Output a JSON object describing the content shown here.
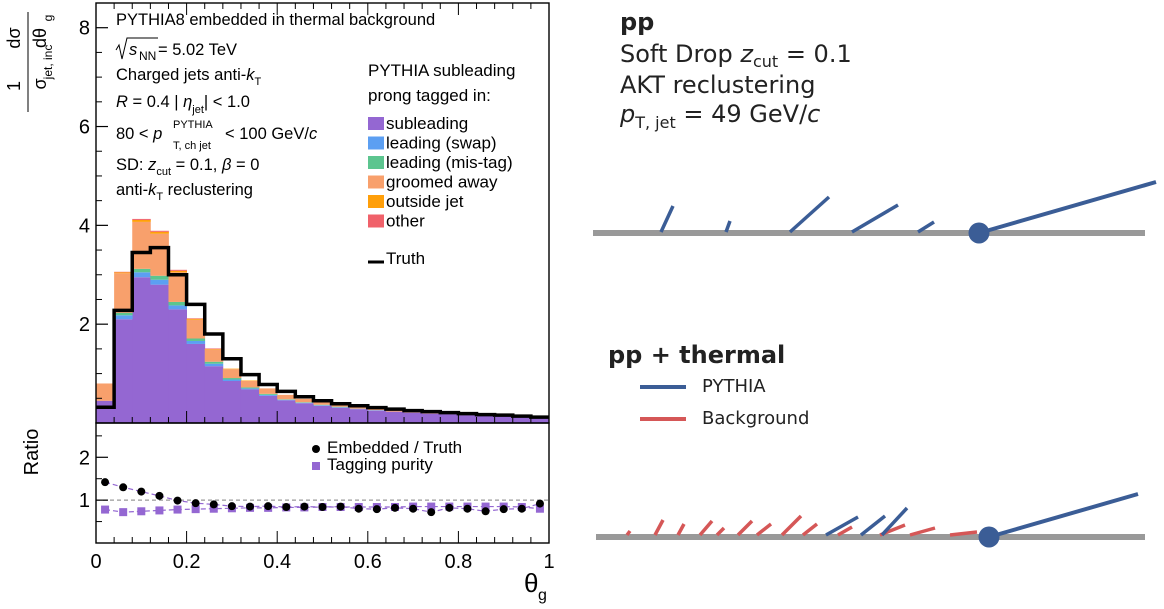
{
  "figure": {
    "colors": {
      "subleading": "#9467d2",
      "leading_swap": "#5c9ff2",
      "leading_mistag": "#5cc58f",
      "groomed_away": "#f8a06c",
      "outside_jet": "#ff9f0a",
      "other": "#f0616a",
      "truth": "#000000",
      "pythia_line": "#3b5d96",
      "background_line": "#d55757",
      "axis_line": "#999999"
    },
    "y_axis_label_frac": "1",
    "y_axis_label_sigma": "σ",
    "y_axis_label_sigma_sub": "jet, inc",
    "y_axis_label_num": "dσ",
    "y_axis_label_den": "dθ",
    "y_axis_label_den_sub": "g",
    "ratio_label": "Ratio",
    "x_axis_label": "θ",
    "x_axis_label_sub": "g",
    "annotations": {
      "line1": "PYTHIA8 embedded in thermal background",
      "line2_sqrt": "s",
      "line2_sub": "NN",
      "line2_rest": " = 5.02 TeV",
      "line3_a": "Charged jets   anti-",
      "line3_k": "k",
      "line3_sub": "T",
      "line4_R": "R",
      "line4_a": " = 0.4   | ",
      "line4_eta": "η",
      "line4_sub": "jet",
      "line4_b": "| < 1.0",
      "line5_a": "80 < ",
      "line5_p": "p",
      "line5_sup": "PYTHIA",
      "line5_sub": "T, ch jet",
      "line5_b": " < 100 GeV/",
      "line5_c": "c",
      "line6_a": "SD: ",
      "line6_z": "z",
      "line6_sub": "cut",
      "line6_b": " = 0.1, ",
      "line6_beta": "β",
      "line6_c": " = 0",
      "line7_a": "anti-",
      "line7_k": "k",
      "line7_sub": "T",
      "line7_b": " reclustering"
    },
    "legend": {
      "title1": "PYTHIA subleading",
      "title2": "prong tagged in:",
      "items": [
        "subleading",
        "leading (swap)",
        "leading (mis-tag)",
        "groomed away",
        "outside jet",
        "other"
      ],
      "truth": "Truth"
    },
    "ratio_legend": {
      "embedded": "Embedded / Truth",
      "purity": "Tagging purity"
    },
    "right_panel": {
      "pp_title": "pp",
      "sd_text": "Soft Drop ",
      "sd_z": "z",
      "sd_sub": "cut",
      "sd_val": " = 0.1",
      "akt": "AKT reclustering",
      "pt_p": "p",
      "pt_sub": "T, jet",
      "pt_val": " = 49 GeV/",
      "pt_c": "c",
      "thermal_title": "pp + thermal",
      "legend_pythia": "PYTHIA",
      "legend_background": "Background"
    }
  },
  "chart_data": [
    {
      "type": "area",
      "panel": "upper",
      "x_bins": [
        0.0,
        0.04,
        0.08,
        0.12,
        0.16,
        0.2,
        0.24,
        0.28,
        0.32,
        0.36,
        0.4,
        0.44,
        0.48,
        0.52,
        0.56,
        0.6,
        0.64,
        0.68,
        0.72,
        0.76,
        0.8,
        0.84,
        0.88,
        0.92,
        0.96,
        1.0
      ],
      "stack_order": [
        "subleading",
        "leading (swap)",
        "leading (mis-tag)",
        "groomed away",
        "outside jet",
        "other"
      ],
      "stacks": {
        "subleading": [
          0.45,
          2.1,
          2.95,
          2.8,
          2.3,
          1.6,
          1.15,
          0.85,
          0.68,
          0.55,
          0.46,
          0.4,
          0.35,
          0.31,
          0.28,
          0.25,
          0.23,
          0.21,
          0.19,
          0.18,
          0.16,
          0.15,
          0.14,
          0.13,
          0.11
        ],
        "leading (swap)": [
          0.0,
          0.08,
          0.1,
          0.1,
          0.08,
          0.06,
          0.05,
          0.03,
          0.02,
          0.02,
          0.01,
          0.01,
          0.01,
          0.01,
          0.01,
          0.01,
          0.0,
          0.0,
          0.0,
          0.0,
          0.0,
          0.0,
          0.0,
          0.0,
          0.0
        ],
        "leading (mis-tag)": [
          0.0,
          0.05,
          0.07,
          0.08,
          0.07,
          0.05,
          0.04,
          0.03,
          0.02,
          0.02,
          0.01,
          0.01,
          0.01,
          0.01,
          0.0,
          0.0,
          0.0,
          0.0,
          0.0,
          0.0,
          0.0,
          0.0,
          0.0,
          0.0,
          0.0
        ],
        "groomed away": [
          0.35,
          0.8,
          0.95,
          0.85,
          0.6,
          0.38,
          0.25,
          0.18,
          0.13,
          0.11,
          0.09,
          0.07,
          0.06,
          0.05,
          0.05,
          0.04,
          0.04,
          0.03,
          0.03,
          0.03,
          0.02,
          0.02,
          0.02,
          0.02,
          0.02
        ],
        "outside jet": [
          0.0,
          0.02,
          0.04,
          0.04,
          0.03,
          0.02,
          0.01,
          0.01,
          0.01,
          0.0,
          0.0,
          0.0,
          0.0,
          0.0,
          0.0,
          0.0,
          0.0,
          0.0,
          0.0,
          0.0,
          0.0,
          0.0,
          0.0,
          0.0,
          0.0
        ],
        "other": [
          0.0,
          0.01,
          0.02,
          0.02,
          0.02,
          0.01,
          0.01,
          0.0,
          0.0,
          0.0,
          0.0,
          0.0,
          0.0,
          0.0,
          0.0,
          0.0,
          0.0,
          0.0,
          0.0,
          0.0,
          0.0,
          0.0,
          0.0,
          0.0,
          0.0
        ]
      },
      "truth": [
        0.32,
        2.28,
        3.45,
        3.55,
        3.0,
        2.4,
        1.8,
        1.3,
        0.98,
        0.78,
        0.64,
        0.53,
        0.45,
        0.39,
        0.35,
        0.31,
        0.28,
        0.25,
        0.23,
        0.21,
        0.19,
        0.17,
        0.16,
        0.14,
        0.12
      ],
      "xlim": [
        0,
        1
      ],
      "ylim": [
        0,
        8.5
      ],
      "yticks": [
        2,
        4,
        6,
        8
      ],
      "legend_position": "top-right"
    },
    {
      "type": "scatter",
      "panel": "ratio",
      "series": [
        {
          "name": "Embedded / Truth",
          "x": [
            0.02,
            0.06,
            0.1,
            0.14,
            0.18,
            0.22,
            0.26,
            0.3,
            0.34,
            0.38,
            0.42,
            0.46,
            0.5,
            0.54,
            0.58,
            0.62,
            0.66,
            0.7,
            0.74,
            0.78,
            0.82,
            0.86,
            0.9,
            0.94,
            0.98
          ],
          "y": [
            1.42,
            1.3,
            1.2,
            1.1,
            0.99,
            0.93,
            0.9,
            0.86,
            0.85,
            0.86,
            0.84,
            0.85,
            0.84,
            0.85,
            0.8,
            0.79,
            0.82,
            0.8,
            0.72,
            0.82,
            0.8,
            0.74,
            0.79,
            0.8,
            0.92
          ]
        },
        {
          "name": "Tagging purity",
          "x": [
            0.02,
            0.06,
            0.1,
            0.14,
            0.18,
            0.22,
            0.26,
            0.3,
            0.34,
            0.38,
            0.42,
            0.46,
            0.5,
            0.54,
            0.58,
            0.62,
            0.66,
            0.7,
            0.74,
            0.78,
            0.82,
            0.86,
            0.9,
            0.94,
            0.98
          ],
          "y": [
            0.78,
            0.72,
            0.74,
            0.76,
            0.78,
            0.79,
            0.8,
            0.81,
            0.82,
            0.82,
            0.83,
            0.83,
            0.84,
            0.84,
            0.84,
            0.84,
            0.84,
            0.85,
            0.85,
            0.85,
            0.85,
            0.85,
            0.85,
            0.84,
            0.8
          ]
        }
      ],
      "reference_line": 1,
      "xlim": [
        0,
        1
      ],
      "ylim": [
        0,
        2.8
      ],
      "yticks": [
        1,
        2
      ],
      "xticks": [
        0,
        0.2,
        0.4,
        0.6,
        0.8,
        1
      ]
    }
  ]
}
